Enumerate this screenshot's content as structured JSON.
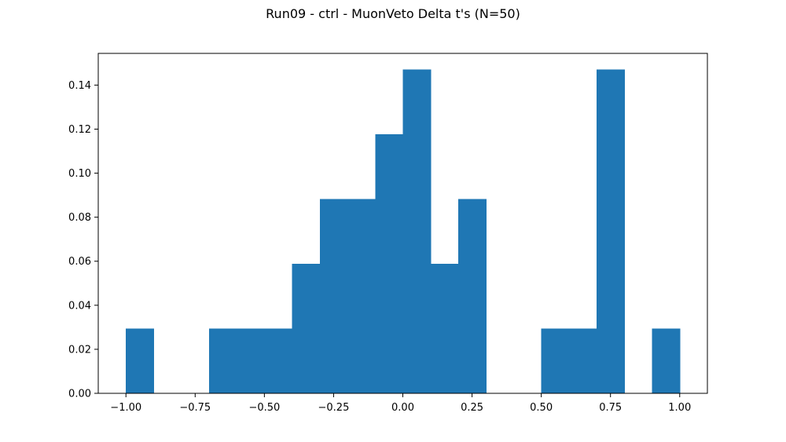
{
  "chart_data": {
    "type": "bar",
    "title": "Run09 - ctrl - MuonVeto Delta t's (N=50)",
    "xlabel": "",
    "ylabel": "",
    "xlim": [
      -1.1,
      1.1
    ],
    "ylim": [
      0.0,
      0.1544
    ],
    "x_ticks": [
      {
        "value": -1.0,
        "label": "−1.00"
      },
      {
        "value": -0.75,
        "label": "−0.75"
      },
      {
        "value": -0.5,
        "label": "−0.50"
      },
      {
        "value": -0.25,
        "label": "−0.25"
      },
      {
        "value": 0.0,
        "label": "0.00"
      },
      {
        "value": 0.25,
        "label": "0.25"
      },
      {
        "value": 0.5,
        "label": "0.50"
      },
      {
        "value": 0.75,
        "label": "0.75"
      },
      {
        "value": 1.0,
        "label": "1.00"
      }
    ],
    "y_ticks": [
      {
        "value": 0.0,
        "label": "0.00"
      },
      {
        "value": 0.02,
        "label": "0.02"
      },
      {
        "value": 0.04,
        "label": "0.04"
      },
      {
        "value": 0.06,
        "label": "0.06"
      },
      {
        "value": 0.08,
        "label": "0.08"
      },
      {
        "value": 0.1,
        "label": "0.10"
      },
      {
        "value": 0.12,
        "label": "0.12"
      },
      {
        "value": 0.14,
        "label": "0.14"
      }
    ],
    "bin_edges": [
      -1.0,
      -0.9,
      -0.8,
      -0.7,
      -0.6,
      -0.5,
      -0.4,
      -0.3,
      -0.2,
      -0.1,
      0.0,
      0.1,
      0.2,
      0.3,
      0.4,
      0.5,
      0.6,
      0.7,
      0.8,
      0.9,
      1.0
    ],
    "values": [
      0.0294,
      0.0,
      0.0,
      0.0294,
      0.0294,
      0.0294,
      0.0588,
      0.0882,
      0.0882,
      0.1176,
      0.1471,
      0.0588,
      0.0882,
      0.0,
      0.0,
      0.0294,
      0.0294,
      0.1471,
      0.0,
      0.0294
    ],
    "bar_color": "#1f77b4",
    "grid": false,
    "legend": false
  }
}
